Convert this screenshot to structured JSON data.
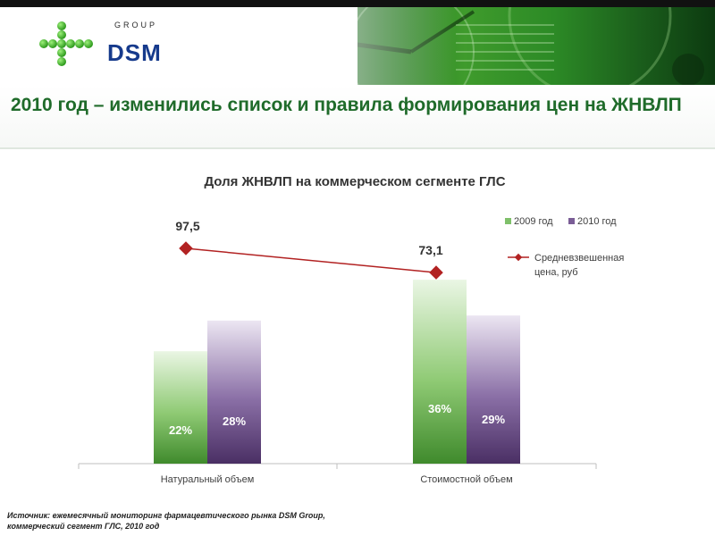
{
  "header": {
    "logo_group": "GROUP",
    "logo_brand": "DSM"
  },
  "slide": {
    "title": "2010 год – изменились список и правила формирования цен на ЖНВЛП",
    "source_line1": "Источник: ежемесячный мониторинг фармацевтического рынка DSM Group,",
    "source_line2": "коммерческий сегмент ГЛС, 2010 год"
  },
  "chart_data": {
    "type": "bar",
    "title": "Доля ЖНВЛП на коммерческом сегменте ГЛС",
    "categories": [
      "Натуральный объем",
      "Стоимостной объем"
    ],
    "series": [
      {
        "name": "2009 год",
        "values": [
          22,
          36
        ],
        "labels": [
          "22%",
          "36%"
        ],
        "color": "#4e9a3e"
      },
      {
        "name": "2010 год",
        "values": [
          28,
          29
        ],
        "labels": [
          "28%",
          "29%"
        ],
        "color": "#5a3f73"
      }
    ],
    "line_series": {
      "name": "Средневзвешенная цена, руб",
      "values": [
        97.5,
        73.1
      ],
      "labels": [
        "97,5",
        "73,1"
      ],
      "color": "#b22222"
    },
    "legend": [
      {
        "label": "2009 год",
        "color": "#7fc06a"
      },
      {
        "label": "2010 год",
        "color": "#7a5d96"
      },
      {
        "label": "Средневзвешенная",
        "color": "#b22222"
      },
      {
        "label": "цена, руб",
        "color": "#b22222"
      }
    ],
    "legend_position": "right",
    "grid": false,
    "y_axis_visible": false
  }
}
